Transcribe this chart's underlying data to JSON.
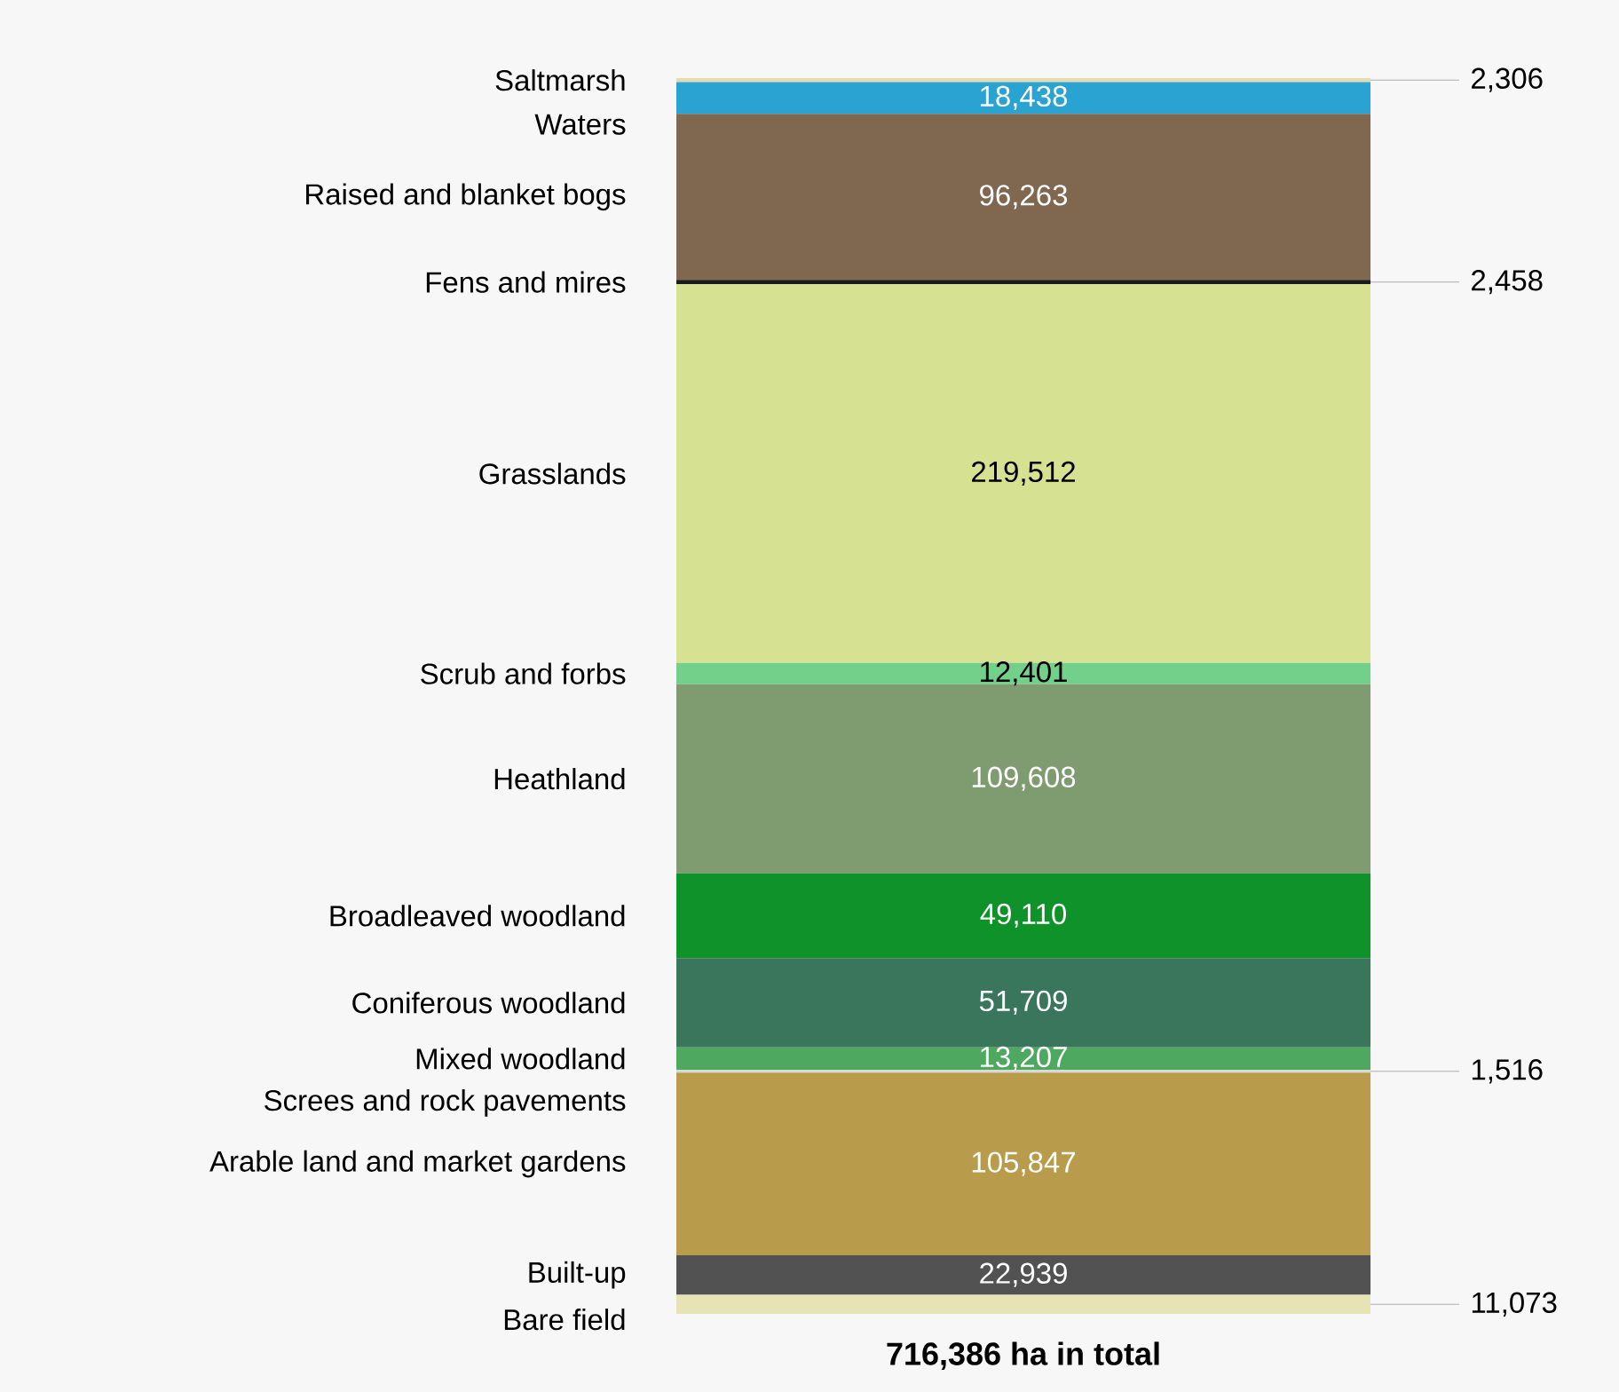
{
  "chart_data": {
    "type": "bar",
    "stacked": true,
    "categories": [
      null
    ],
    "xlabel": "716,386 ha in total",
    "series": [
      {
        "name": "Bare field",
        "color": "#e6e3b4",
        "values": [
          11073
        ],
        "value_labels": [
          "11,073"
        ]
      },
      {
        "name": "Built-up",
        "color": "#525252",
        "values": [
          22939
        ],
        "value_labels": [
          "22,939"
        ]
      },
      {
        "name": "Arable land and market gardens",
        "color": "#b89c4c",
        "values": [
          105847
        ],
        "value_labels": [
          "105,847"
        ]
      },
      {
        "name": "Screes and rock pavements",
        "color": "#d8d8d8",
        "values": [
          1516
        ],
        "value_labels": [
          "1,516"
        ]
      },
      {
        "name": "Mixed woodland",
        "color": "#4ea860",
        "values": [
          13207
        ],
        "value_labels": [
          "13,207"
        ]
      },
      {
        "name": "Coniferous woodland",
        "color": "#3a765c",
        "values": [
          51709
        ],
        "value_labels": [
          "51,709"
        ]
      },
      {
        "name": "Broadleaved woodland",
        "color": "#0e9229",
        "values": [
          49110
        ],
        "value_labels": [
          "49,110"
        ]
      },
      {
        "name": "Heathland",
        "color": "#7f9b70",
        "values": [
          109608
        ],
        "value_labels": [
          "109,608"
        ]
      },
      {
        "name": "Scrub and forbs",
        "color": "#72d08a",
        "values": [
          12401
        ],
        "value_labels": [
          "12,401"
        ]
      },
      {
        "name": "Grasslands",
        "color": "#d6e291",
        "values": [
          219512
        ],
        "value_labels": [
          "219,512"
        ]
      },
      {
        "name": "Fens and mires",
        "color": "#1a1a1a",
        "values": [
          2458
        ],
        "value_labels": [
          "2,458"
        ]
      },
      {
        "name": "Raised and blanket bogs",
        "color": "#806850",
        "values": [
          96263
        ],
        "value_labels": [
          "96,263"
        ]
      },
      {
        "name": "Waters",
        "color": "#2aa3d3",
        "values": [
          18438
        ],
        "value_labels": [
          "18,438"
        ]
      },
      {
        "name": "Saltmarsh",
        "color": "#e6dab0",
        "values": [
          2306
        ],
        "value_labels": [
          "2,306"
        ]
      }
    ]
  }
}
